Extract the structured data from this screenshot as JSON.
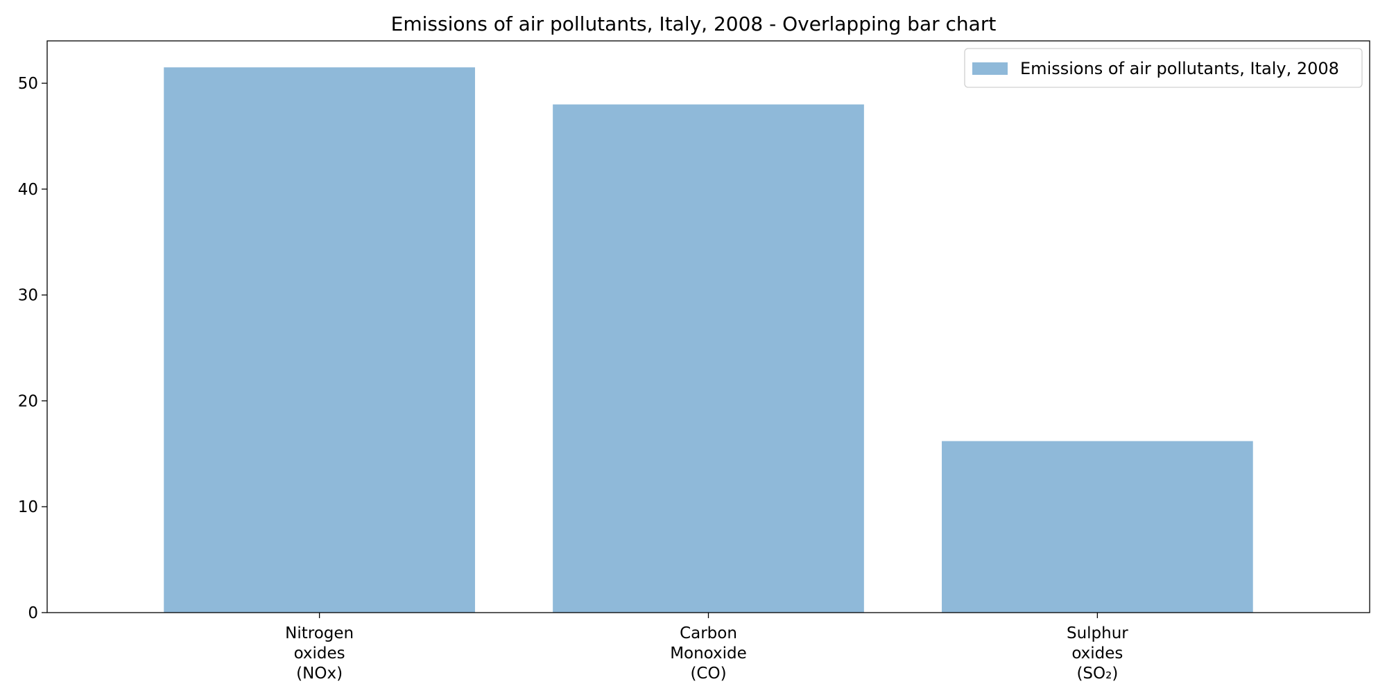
{
  "chart_data": {
    "type": "bar",
    "title": "Emissions of air pollutants, Italy, 2008 - Overlapping bar chart",
    "xlabel": "",
    "ylabel": "",
    "categories": [
      [
        "Nitrogen",
        "oxides",
        "(NOx)"
      ],
      [
        "Carbon",
        "Monoxide",
        "(CO)"
      ],
      [
        "Sulphur",
        "oxides",
        "(SO₂)"
      ]
    ],
    "series": [
      {
        "name": "Emissions of air pollutants, Italy, 2008",
        "values": [
          51.5,
          48.0,
          16.2
        ],
        "color": "#8fb9d9"
      }
    ],
    "ylim": [
      0,
      54
    ],
    "yticks": [
      0,
      10,
      20,
      30,
      40,
      50
    ],
    "grid": false,
    "legend_position": "top-right"
  }
}
